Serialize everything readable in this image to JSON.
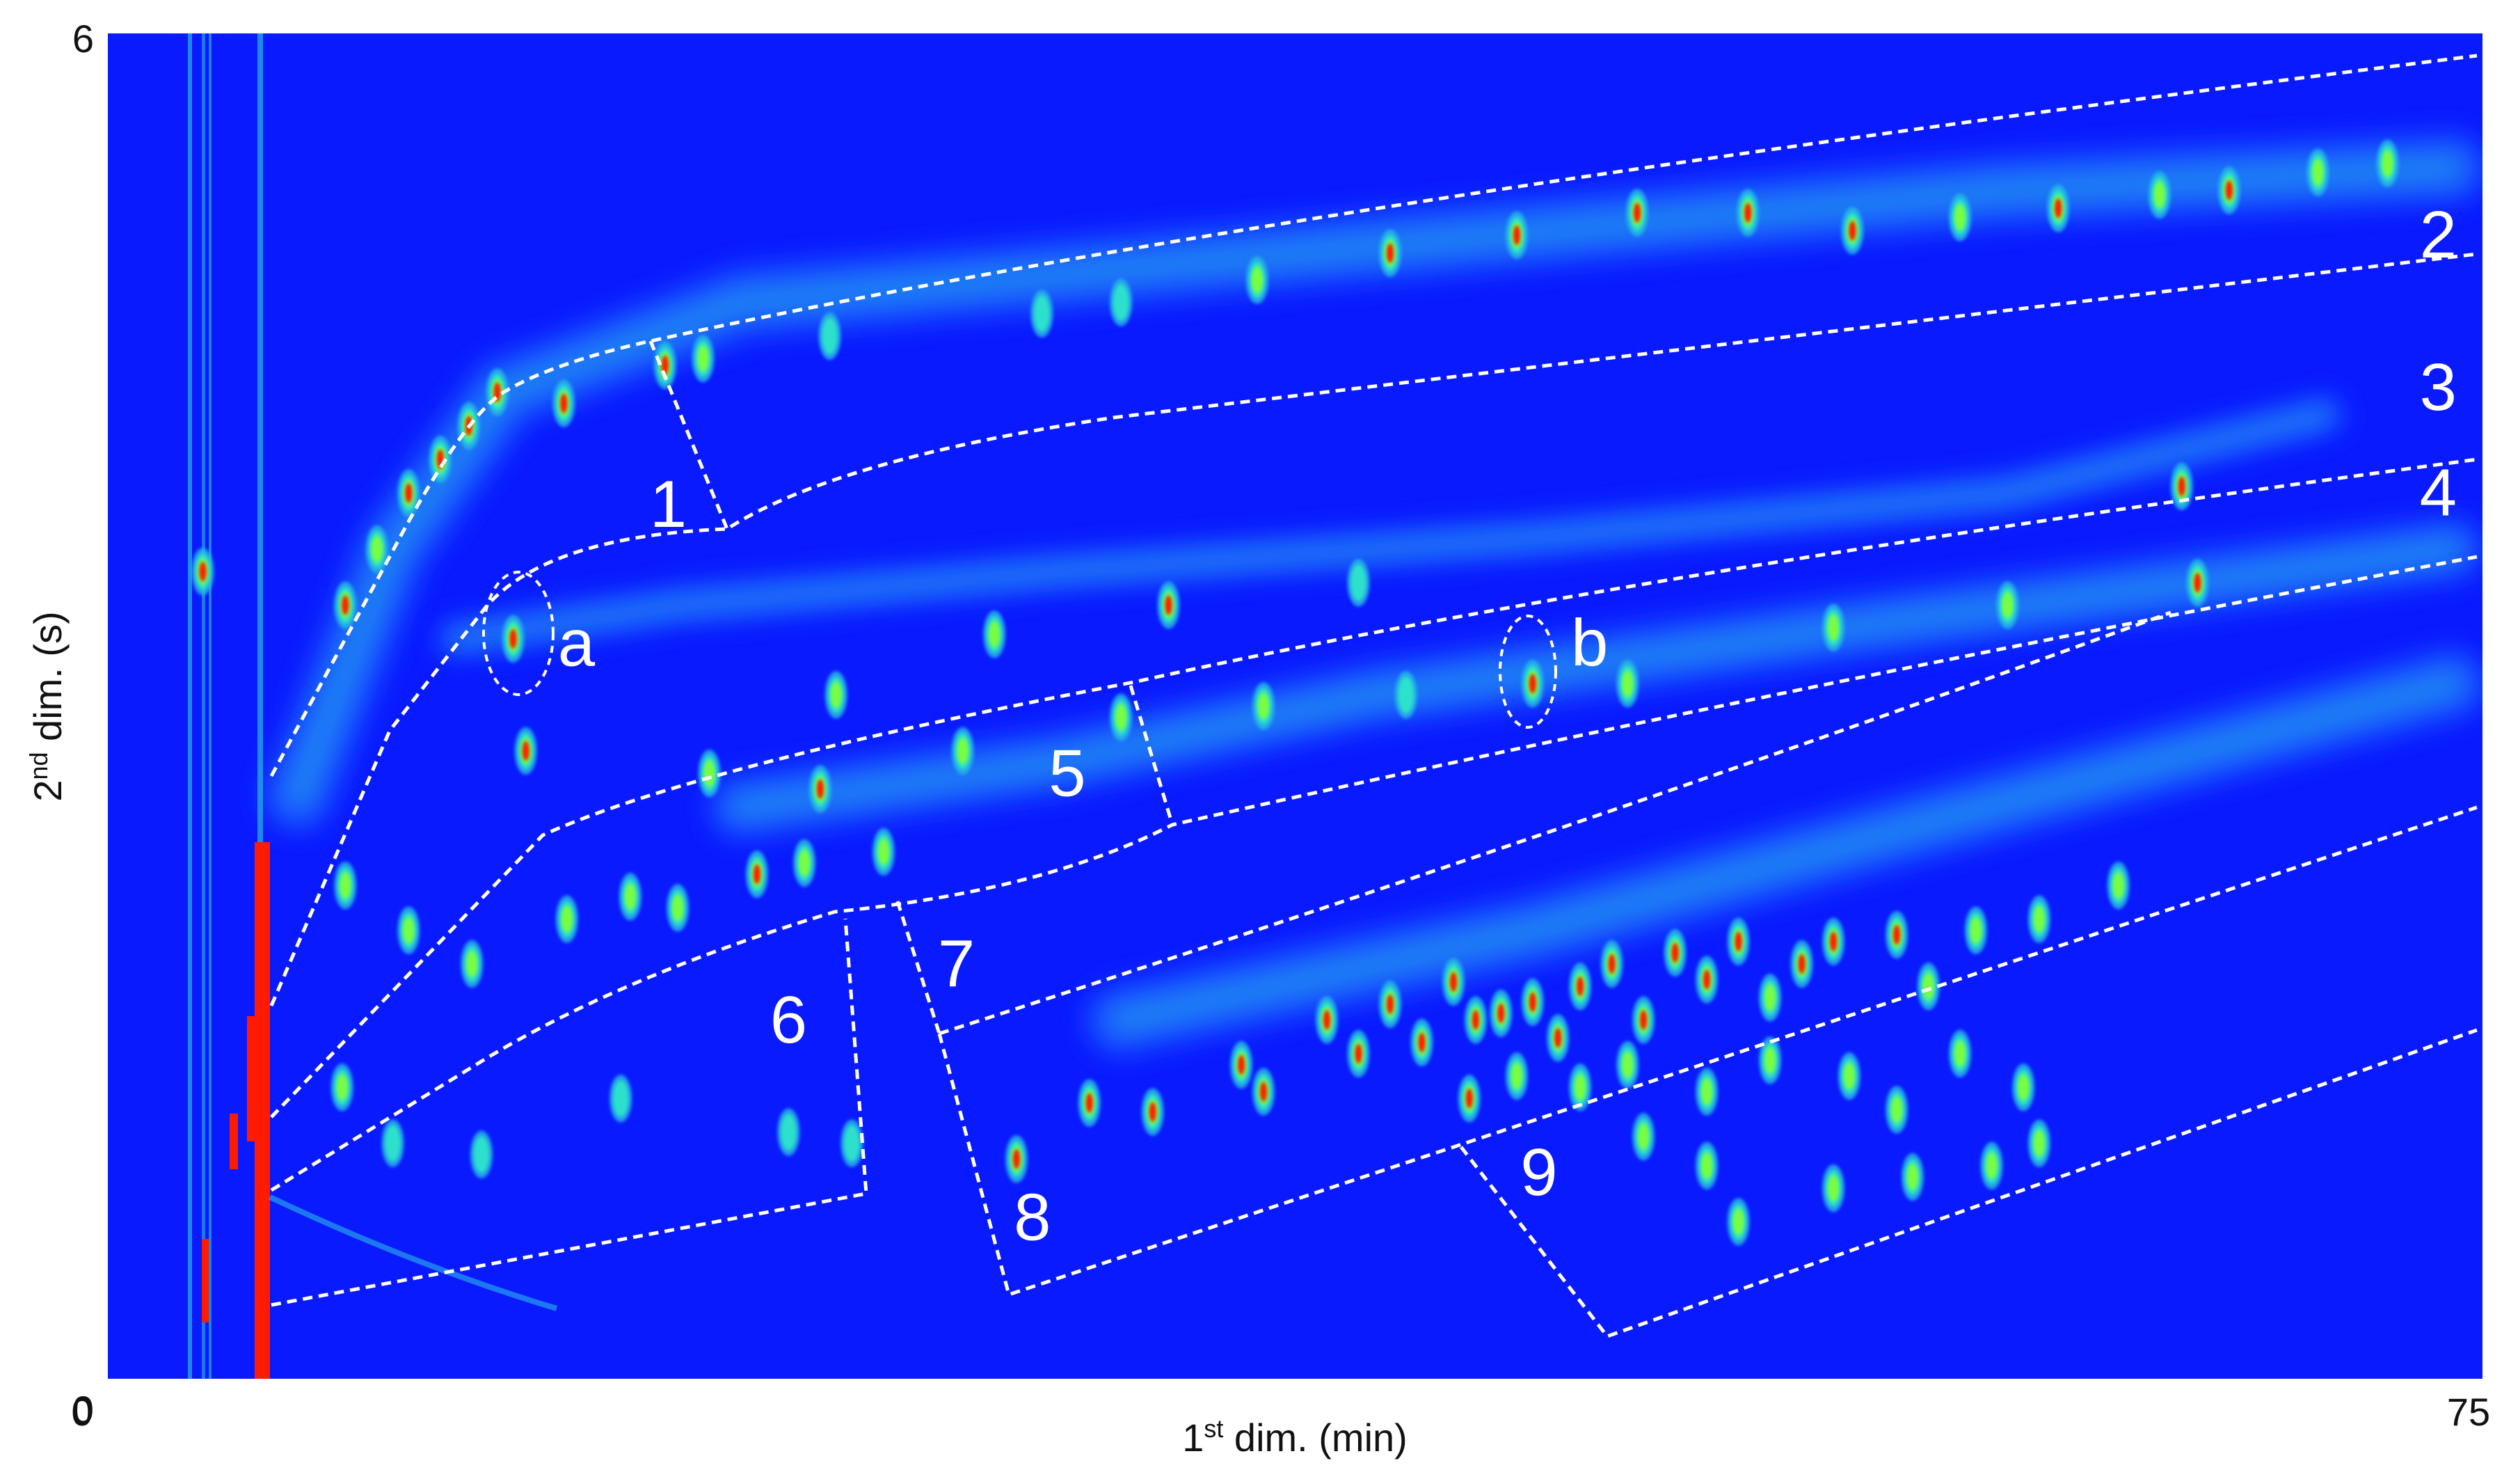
{
  "chart_data": {
    "type": "heatmap",
    "title": "",
    "xlabel_pre": "1",
    "xlabel_sup": "st",
    "xlabel_post": " dim. (min)",
    "ylabel_pre": "2",
    "ylabel_sup": "nd",
    "ylabel_post": " dim. (s)",
    "xlim": [
      0,
      75
    ],
    "ylim": [
      0,
      6
    ],
    "x_ticks": [
      "0",
      "75"
    ],
    "y_ticks": [
      "0",
      "6"
    ],
    "grid": false,
    "colors": {
      "background": "#0a1aff",
      "band": "#1f6bff",
      "band_light": "#27b7e6",
      "peak_mid": "#2ee8c8",
      "peak_green": "#7dff3a",
      "peak_high": "#ff1a00",
      "boundary": "#ffffff"
    },
    "bands": [
      {
        "points": [
          [
            6,
            2.6
          ],
          [
            9,
            3.7
          ],
          [
            12.5,
            4.4
          ],
          [
            20,
            4.8
          ],
          [
            40,
            5.05
          ],
          [
            60,
            5.3
          ],
          [
            74,
            5.4
          ]
        ],
        "width": 0.22
      },
      {
        "points": [
          [
            11,
            3.3
          ],
          [
            18,
            3.45
          ],
          [
            30,
            3.6
          ],
          [
            45,
            3.75
          ],
          [
            60,
            3.95
          ],
          [
            70,
            4.3
          ]
        ],
        "width": 0.12
      },
      {
        "points": [
          [
            20,
            2.55
          ],
          [
            30,
            2.75
          ],
          [
            40,
            3.05
          ],
          [
            55,
            3.35
          ],
          [
            74,
            3.7
          ]
        ],
        "width": 0.2
      },
      {
        "points": [
          [
            32,
            1.6
          ],
          [
            45,
            2.0
          ],
          [
            58,
            2.5
          ],
          [
            74,
            3.1
          ]
        ],
        "width": 0.22
      }
    ],
    "regions": [
      {
        "label": "1",
        "x": 17.7,
        "y": 3.8
      },
      {
        "label": "2",
        "x": 73.6,
        "y": 5.0
      },
      {
        "label": "3",
        "x": 73.6,
        "y": 4.32
      },
      {
        "label": "4",
        "x": 73.6,
        "y": 3.85
      },
      {
        "label": "5",
        "x": 30.3,
        "y": 2.6
      },
      {
        "label": "6",
        "x": 21.5,
        "y": 1.5
      },
      {
        "label": "7",
        "x": 26.8,
        "y": 1.75
      },
      {
        "label": "8",
        "x": 29.2,
        "y": 0.62
      },
      {
        "label": "9",
        "x": 45.2,
        "y": 0.82
      }
    ],
    "markers": [
      {
        "label": "a",
        "x": 12.8,
        "y": 3.3,
        "label_x": 14.8,
        "label_y": 3.18
      },
      {
        "label": "b",
        "x": 45.0,
        "y": 3.1,
        "label_x": 46.8,
        "label_y": 3.18
      }
    ],
    "peaks": [
      {
        "x": 3.0,
        "y": 3.6,
        "i": 0.9
      },
      {
        "x": 7.5,
        "y": 3.45,
        "i": 1.0
      },
      {
        "x": 8.5,
        "y": 3.7,
        "i": 0.85
      },
      {
        "x": 9.5,
        "y": 3.95,
        "i": 1.0
      },
      {
        "x": 10.5,
        "y": 4.1,
        "i": 0.9
      },
      {
        "x": 11.4,
        "y": 4.25,
        "i": 0.9
      },
      {
        "x": 12.3,
        "y": 4.4,
        "i": 0.9
      },
      {
        "x": 14.4,
        "y": 4.35,
        "i": 1.0
      },
      {
        "x": 17.6,
        "y": 4.52,
        "i": 0.9
      },
      {
        "x": 18.8,
        "y": 4.55,
        "i": 0.75
      },
      {
        "x": 22.8,
        "y": 4.65,
        "i": 0.7
      },
      {
        "x": 29.5,
        "y": 4.75,
        "i": 0.7
      },
      {
        "x": 32.0,
        "y": 4.8,
        "i": 0.7
      },
      {
        "x": 36.3,
        "y": 4.9,
        "i": 0.8
      },
      {
        "x": 40.5,
        "y": 5.02,
        "i": 1.0
      },
      {
        "x": 44.5,
        "y": 5.1,
        "i": 1.0
      },
      {
        "x": 48.3,
        "y": 5.2,
        "i": 1.0
      },
      {
        "x": 51.8,
        "y": 5.2,
        "i": 1.0
      },
      {
        "x": 55.1,
        "y": 5.12,
        "i": 1.0
      },
      {
        "x": 58.5,
        "y": 5.18,
        "i": 0.8
      },
      {
        "x": 61.6,
        "y": 5.22,
        "i": 0.9
      },
      {
        "x": 64.8,
        "y": 5.28,
        "i": 0.85
      },
      {
        "x": 67.0,
        "y": 5.3,
        "i": 0.9
      },
      {
        "x": 69.8,
        "y": 5.38,
        "i": 0.85
      },
      {
        "x": 72.0,
        "y": 5.42,
        "i": 0.85
      },
      {
        "x": 12.8,
        "y": 3.3,
        "i": 1.0
      },
      {
        "x": 45.0,
        "y": 3.1,
        "i": 1.0
      },
      {
        "x": 23.0,
        "y": 3.05,
        "i": 0.8
      },
      {
        "x": 28.0,
        "y": 3.32,
        "i": 0.8
      },
      {
        "x": 33.5,
        "y": 3.45,
        "i": 0.9
      },
      {
        "x": 39.5,
        "y": 3.55,
        "i": 0.7
      },
      {
        "x": 48.0,
        "y": 3.1,
        "i": 0.75
      },
      {
        "x": 54.5,
        "y": 3.35,
        "i": 0.75
      },
      {
        "x": 60.0,
        "y": 3.45,
        "i": 0.75
      },
      {
        "x": 65.5,
        "y": 3.98,
        "i": 1.0
      },
      {
        "x": 66.0,
        "y": 3.55,
        "i": 1.0
      },
      {
        "x": 13.2,
        "y": 2.8,
        "i": 0.9
      },
      {
        "x": 19.0,
        "y": 2.7,
        "i": 0.8
      },
      {
        "x": 22.5,
        "y": 2.63,
        "i": 0.9
      },
      {
        "x": 27.0,
        "y": 2.8,
        "i": 0.75
      },
      {
        "x": 32.0,
        "y": 2.95,
        "i": 0.75
      },
      {
        "x": 36.5,
        "y": 3.0,
        "i": 0.75
      },
      {
        "x": 41.0,
        "y": 3.05,
        "i": 0.7
      },
      {
        "x": 7.5,
        "y": 2.2,
        "i": 0.85
      },
      {
        "x": 9.5,
        "y": 2.0,
        "i": 0.8
      },
      {
        "x": 11.5,
        "y": 1.85,
        "i": 0.8
      },
      {
        "x": 14.5,
        "y": 2.05,
        "i": 0.75
      },
      {
        "x": 16.5,
        "y": 2.15,
        "i": 0.85
      },
      {
        "x": 18.0,
        "y": 2.1,
        "i": 0.85
      },
      {
        "x": 20.5,
        "y": 2.25,
        "i": 0.9
      },
      {
        "x": 22.0,
        "y": 2.3,
        "i": 0.85
      },
      {
        "x": 24.5,
        "y": 2.35,
        "i": 0.8
      },
      {
        "x": 7.4,
        "y": 1.3,
        "i": 0.8
      },
      {
        "x": 9.0,
        "y": 1.05,
        "i": 0.6
      },
      {
        "x": 11.8,
        "y": 1.0,
        "i": 0.6
      },
      {
        "x": 16.2,
        "y": 1.25,
        "i": 0.6
      },
      {
        "x": 21.5,
        "y": 1.1,
        "i": 0.6
      },
      {
        "x": 23.5,
        "y": 1.05,
        "i": 0.6
      },
      {
        "x": 28.7,
        "y": 0.98,
        "i": 1.0
      },
      {
        "x": 31.0,
        "y": 1.23,
        "i": 1.0
      },
      {
        "x": 33.0,
        "y": 1.19,
        "i": 1.0
      },
      {
        "x": 35.8,
        "y": 1.4,
        "i": 1.0
      },
      {
        "x": 36.5,
        "y": 1.28,
        "i": 1.0
      },
      {
        "x": 38.5,
        "y": 1.6,
        "i": 1.0
      },
      {
        "x": 39.5,
        "y": 1.45,
        "i": 1.0
      },
      {
        "x": 40.5,
        "y": 1.67,
        "i": 1.0
      },
      {
        "x": 41.5,
        "y": 1.5,
        "i": 0.95
      },
      {
        "x": 42.5,
        "y": 1.77,
        "i": 1.0
      },
      {
        "x": 43.2,
        "y": 1.6,
        "i": 0.9
      },
      {
        "x": 44.0,
        "y": 1.63,
        "i": 1.0
      },
      {
        "x": 45.0,
        "y": 1.68,
        "i": 1.0
      },
      {
        "x": 45.8,
        "y": 1.52,
        "i": 0.9
      },
      {
        "x": 46.5,
        "y": 1.75,
        "i": 1.0
      },
      {
        "x": 47.5,
        "y": 1.85,
        "i": 1.0
      },
      {
        "x": 48.5,
        "y": 1.6,
        "i": 0.9
      },
      {
        "x": 49.5,
        "y": 1.9,
        "i": 1.0
      },
      {
        "x": 50.5,
        "y": 1.78,
        "i": 0.9
      },
      {
        "x": 51.5,
        "y": 1.95,
        "i": 0.9
      },
      {
        "x": 52.5,
        "y": 1.7,
        "i": 0.85
      },
      {
        "x": 53.5,
        "y": 1.85,
        "i": 0.9
      },
      {
        "x": 54.5,
        "y": 1.95,
        "i": 0.9
      },
      {
        "x": 56.5,
        "y": 1.98,
        "i": 0.9
      },
      {
        "x": 57.5,
        "y": 1.75,
        "i": 0.85
      },
      {
        "x": 59.0,
        "y": 2.0,
        "i": 0.85
      },
      {
        "x": 61.0,
        "y": 2.05,
        "i": 0.85
      },
      {
        "x": 63.5,
        "y": 2.2,
        "i": 0.8
      },
      {
        "x": 43.0,
        "y": 1.25,
        "i": 0.9
      },
      {
        "x": 44.5,
        "y": 1.35,
        "i": 0.85
      },
      {
        "x": 46.5,
        "y": 1.3,
        "i": 0.85
      },
      {
        "x": 48.0,
        "y": 1.4,
        "i": 0.85
      },
      {
        "x": 50.5,
        "y": 1.28,
        "i": 0.8
      },
      {
        "x": 52.5,
        "y": 1.42,
        "i": 0.85
      },
      {
        "x": 55.0,
        "y": 1.35,
        "i": 0.8
      },
      {
        "x": 56.5,
        "y": 1.2,
        "i": 0.8
      },
      {
        "x": 58.5,
        "y": 1.45,
        "i": 0.8
      },
      {
        "x": 60.5,
        "y": 1.3,
        "i": 0.75
      },
      {
        "x": 48.5,
        "y": 1.08,
        "i": 0.8
      },
      {
        "x": 50.5,
        "y": 0.95,
        "i": 0.75
      },
      {
        "x": 51.5,
        "y": 0.7,
        "i": 0.8
      },
      {
        "x": 54.5,
        "y": 0.85,
        "i": 0.8
      },
      {
        "x": 57.0,
        "y": 0.9,
        "i": 0.8
      },
      {
        "x": 59.5,
        "y": 0.95,
        "i": 0.75
      },
      {
        "x": 61.0,
        "y": 1.05,
        "i": 0.75
      }
    ]
  }
}
